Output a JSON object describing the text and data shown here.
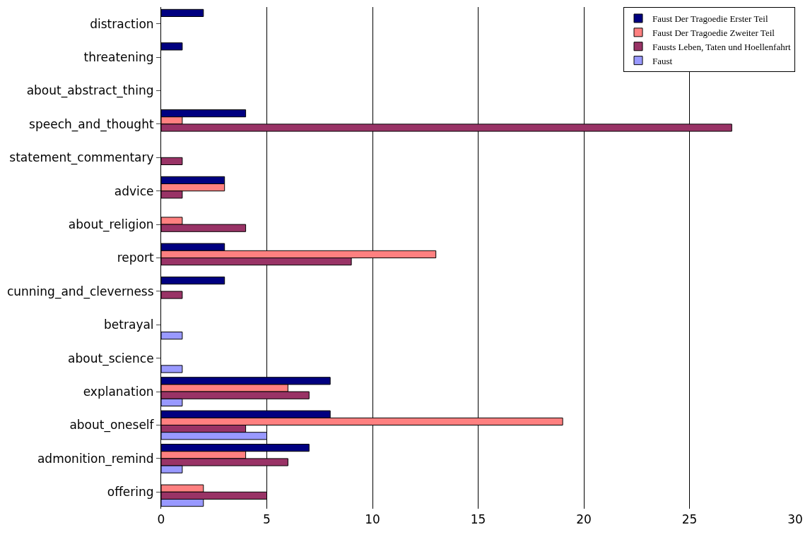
{
  "chart_data": {
    "type": "bar",
    "orientation": "horizontal",
    "categories": [
      "distraction",
      "threatening",
      "about_abstract_thing",
      "speech_and_thought",
      "statement_commentary",
      "advice",
      "about_religion",
      "report",
      "cunning_and_cleverness",
      "betrayal",
      "about_science",
      "explanation",
      "about_oneself",
      "admonition_remind",
      "offering"
    ],
    "series": [
      {
        "name": "Faust Der Tragoedie Erster Teil",
        "color": "#000080",
        "values": [
          2,
          1,
          null,
          4,
          null,
          3,
          null,
          3,
          3,
          null,
          null,
          8,
          8,
          7,
          null
        ]
      },
      {
        "name": "Faust Der Tragoedie Zweiter Teil",
        "color": "#ff8080",
        "values": [
          null,
          null,
          null,
          1,
          null,
          3,
          1,
          13,
          null,
          null,
          null,
          6,
          19,
          4,
          2
        ]
      },
      {
        "name": "Fausts Leben, Taten und Hoellenfahrt",
        "color": "#993366",
        "values": [
          null,
          null,
          null,
          27,
          1,
          1,
          4,
          9,
          1,
          null,
          null,
          7,
          4,
          6,
          5
        ]
      },
      {
        "name": "Faust",
        "color": "#9999ff",
        "values": [
          null,
          null,
          null,
          null,
          null,
          null,
          null,
          null,
          null,
          1,
          1,
          1,
          5,
          1,
          2
        ]
      }
    ],
    "xlim": [
      0,
      30
    ],
    "xticks": [
      0,
      5,
      10,
      15,
      20,
      25,
      30
    ],
    "grid": "x",
    "legend": "top right"
  }
}
